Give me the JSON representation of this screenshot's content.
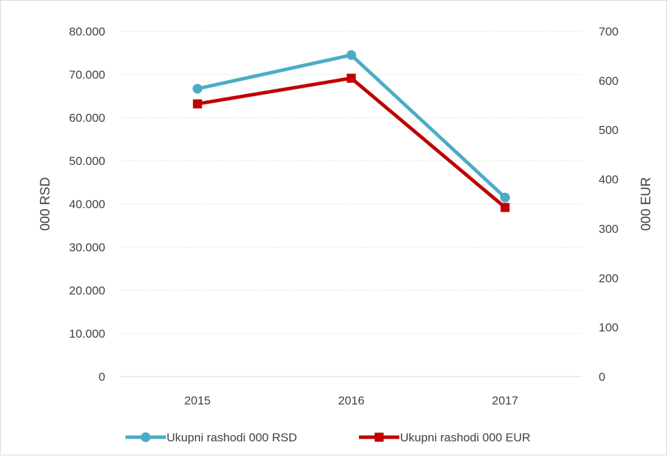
{
  "chart_data": {
    "type": "line",
    "categories": [
      "2015",
      "2016",
      "2017"
    ],
    "y_left": {
      "label": "000 RSD",
      "range": [
        0,
        80000
      ],
      "ticks": [
        0,
        10000,
        20000,
        30000,
        40000,
        50000,
        60000,
        70000,
        80000
      ],
      "tick_labels": [
        "0",
        "10.000",
        "20.000",
        "30.000",
        "40.000",
        "50.000",
        "60.000",
        "70.000",
        "80.000"
      ]
    },
    "y_right": {
      "label": "000 EUR",
      "range": [
        0,
        700
      ],
      "ticks": [
        0,
        100,
        200,
        300,
        400,
        500,
        600,
        700
      ],
      "tick_labels": [
        "0",
        "100",
        "200",
        "300",
        "400",
        "500",
        "600",
        "700"
      ]
    },
    "grid": true,
    "legend_position": "bottom",
    "series": [
      {
        "name": "Ukupni rashodi 000 RSD",
        "axis": "left",
        "values": [
          66700,
          74500,
          41500
        ],
        "color": "#4bacc6",
        "marker": "circle"
      },
      {
        "name": "Ukupni rashodi 000 EUR",
        "axis": "right",
        "values": [
          553,
          605,
          343
        ],
        "color": "#c00000",
        "marker": "square"
      }
    ]
  }
}
